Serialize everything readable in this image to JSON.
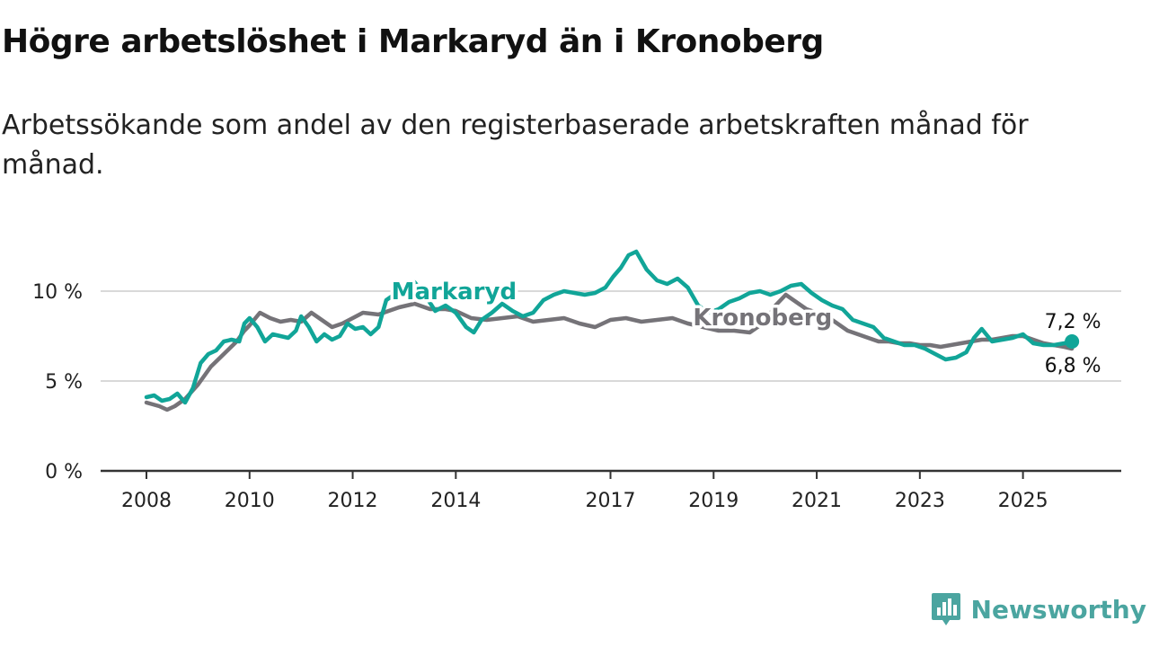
{
  "title": "Högre arbetslöshet i Markaryd än i Kronoberg",
  "subtitle": "Arbetssökande som andel av den registerbaserade arbetskraften månad för månad.",
  "brand": {
    "name": "Newsworthy",
    "color": "#4ba5a0",
    "icon": "newsworthy-logo-icon"
  },
  "chart_data": {
    "type": "line",
    "title": "Högre arbetslöshet i Markaryd än i Kronoberg",
    "xlabel": "",
    "ylabel": "",
    "ylim": [
      0,
      12.5
    ],
    "xlim": [
      2008,
      2026.8
    ],
    "grid": true,
    "x_ticks": [
      2008,
      2010,
      2012,
      2014,
      2017,
      2019,
      2021,
      2023,
      2025
    ],
    "x_tick_labels": [
      "2008",
      "2010",
      "2012",
      "2014",
      "2017",
      "2019",
      "2021",
      "2023",
      "2025"
    ],
    "y_ticks": [
      0,
      5,
      10
    ],
    "y_tick_labels": [
      "0 %",
      "5 %",
      "10 %"
    ],
    "series": [
      {
        "name": "Kronoberg",
        "color": "#757378",
        "label_text": "Kronoberg",
        "end_label": "6,8 %",
        "x": [
          2008.0,
          2008.25,
          2008.4,
          2008.55,
          2008.75,
          2009.0,
          2009.25,
          2009.5,
          2009.75,
          2009.9,
          2010.0,
          2010.2,
          2010.4,
          2010.6,
          2010.8,
          2011.0,
          2011.2,
          2011.4,
          2011.6,
          2011.8,
          2012.0,
          2012.2,
          2012.5,
          2012.7,
          2012.9,
          2013.2,
          2013.5,
          2013.8,
          2014.0,
          2014.3,
          2014.6,
          2014.9,
          2015.2,
          2015.5,
          2015.8,
          2016.1,
          2016.4,
          2016.7,
          2017.0,
          2017.3,
          2017.6,
          2017.9,
          2018.2,
          2018.5,
          2018.8,
          2019.1,
          2019.4,
          2019.7,
          2020.0,
          2020.2,
          2020.4,
          2020.6,
          2020.8,
          2021.0,
          2021.2,
          2021.4,
          2021.6,
          2021.8,
          2022.0,
          2022.2,
          2022.4,
          2022.6,
          2022.8,
          2023.0,
          2023.2,
          2023.4,
          2023.6,
          2023.8,
          2024.0,
          2024.2,
          2024.4,
          2024.6,
          2024.8,
          2025.0,
          2025.2,
          2025.4,
          2025.6,
          2025.8,
          2025.95
        ],
        "y": [
          3.8,
          3.6,
          3.4,
          3.6,
          4.0,
          4.8,
          5.8,
          6.5,
          7.2,
          7.8,
          8.1,
          8.8,
          8.5,
          8.3,
          8.4,
          8.3,
          8.8,
          8.4,
          8.0,
          8.2,
          8.5,
          8.8,
          8.7,
          8.9,
          9.1,
          9.3,
          9.0,
          9.0,
          8.9,
          8.5,
          8.4,
          8.5,
          8.6,
          8.3,
          8.4,
          8.5,
          8.2,
          8.0,
          8.4,
          8.5,
          8.3,
          8.4,
          8.5,
          8.2,
          8.0,
          7.8,
          7.8,
          7.7,
          8.3,
          9.2,
          9.8,
          9.4,
          9.0,
          8.8,
          8.6,
          8.2,
          7.8,
          7.6,
          7.4,
          7.2,
          7.2,
          7.1,
          7.1,
          7.0,
          7.0,
          6.9,
          7.0,
          7.1,
          7.2,
          7.3,
          7.3,
          7.4,
          7.5,
          7.5,
          7.3,
          7.1,
          7.0,
          6.9,
          6.8
        ]
      },
      {
        "name": "Markaryd",
        "color": "#11a598",
        "label_text": "Markaryd",
        "end_label": "7,2 %",
        "x": [
          2008.0,
          2008.15,
          2008.3,
          2008.45,
          2008.6,
          2008.75,
          2008.9,
          2009.05,
          2009.2,
          2009.35,
          2009.5,
          2009.65,
          2009.8,
          2009.9,
          2010.0,
          2010.15,
          2010.3,
          2010.45,
          2010.6,
          2010.75,
          2010.9,
          2011.0,
          2011.15,
          2011.3,
          2011.45,
          2011.6,
          2011.75,
          2011.9,
          2012.05,
          2012.2,
          2012.35,
          2012.5,
          2012.65,
          2012.8,
          2013.0,
          2013.2,
          2013.4,
          2013.6,
          2013.8,
          2014.0,
          2014.2,
          2014.35,
          2014.5,
          2014.7,
          2014.9,
          2015.1,
          2015.3,
          2015.5,
          2015.7,
          2015.9,
          2016.1,
          2016.3,
          2016.5,
          2016.7,
          2016.9,
          2017.05,
          2017.2,
          2017.35,
          2017.5,
          2017.7,
          2017.9,
          2018.1,
          2018.3,
          2018.5,
          2018.7,
          2018.9,
          2019.1,
          2019.3,
          2019.5,
          2019.7,
          2019.9,
          2020.1,
          2020.3,
          2020.5,
          2020.7,
          2020.9,
          2021.1,
          2021.3,
          2021.5,
          2021.7,
          2021.9,
          2022.1,
          2022.3,
          2022.5,
          2022.7,
          2022.9,
          2023.1,
          2023.3,
          2023.5,
          2023.7,
          2023.9,
          2024.05,
          2024.2,
          2024.4,
          2024.6,
          2024.8,
          2025.0,
          2025.2,
          2025.4,
          2025.6,
          2025.8,
          2025.95
        ],
        "y": [
          4.1,
          4.2,
          3.9,
          4.0,
          4.3,
          3.8,
          4.6,
          6.0,
          6.5,
          6.7,
          7.2,
          7.3,
          7.2,
          8.2,
          8.5,
          8.0,
          7.2,
          7.6,
          7.5,
          7.4,
          7.8,
          8.6,
          8.0,
          7.2,
          7.6,
          7.3,
          7.5,
          8.2,
          7.9,
          8.0,
          7.6,
          8.0,
          9.5,
          9.8,
          10.0,
          10.5,
          9.8,
          8.9,
          9.2,
          8.8,
          8.0,
          7.7,
          8.4,
          8.8,
          9.3,
          8.9,
          8.6,
          8.8,
          9.5,
          9.8,
          10.0,
          9.9,
          9.8,
          9.9,
          10.2,
          10.8,
          11.3,
          12.0,
          12.2,
          11.2,
          10.6,
          10.4,
          10.7,
          10.2,
          9.2,
          8.8,
          9.0,
          9.4,
          9.6,
          9.9,
          10.0,
          9.8,
          10.0,
          10.3,
          10.4,
          9.9,
          9.5,
          9.2,
          9.0,
          8.4,
          8.2,
          8.0,
          7.4,
          7.2,
          7.0,
          7.0,
          6.8,
          6.5,
          6.2,
          6.3,
          6.6,
          7.4,
          7.9,
          7.2,
          7.3,
          7.4,
          7.6,
          7.1,
          7.0,
          7.0,
          7.1,
          7.2
        ]
      }
    ]
  }
}
